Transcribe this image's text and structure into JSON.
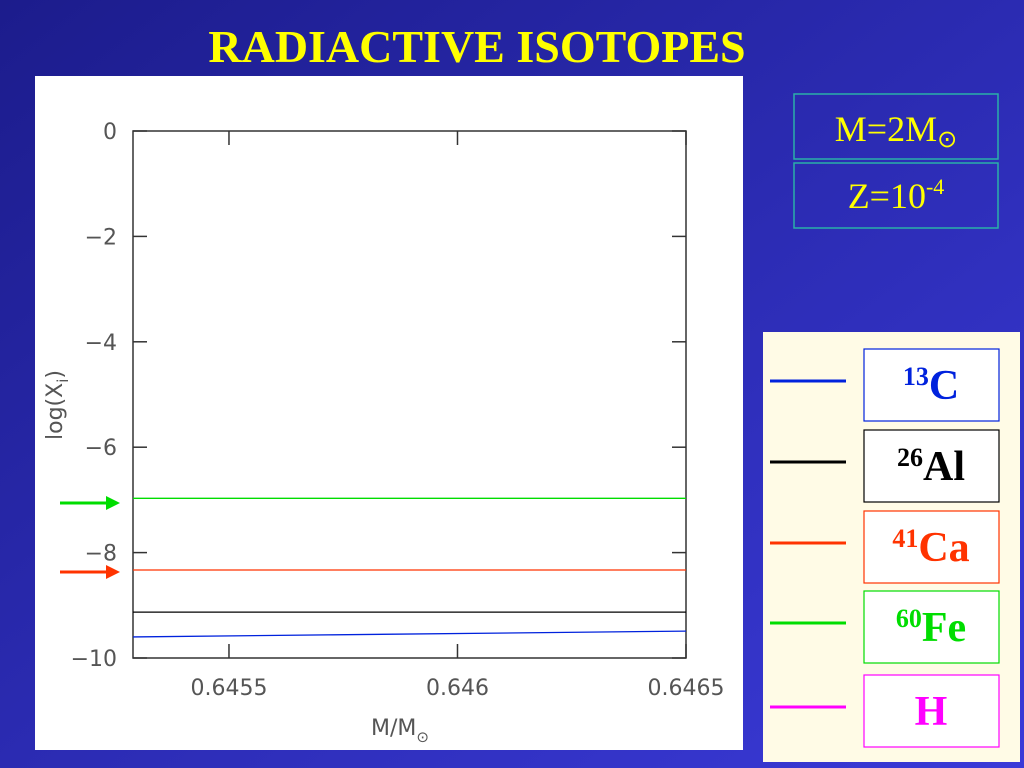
{
  "slide_title": "RADIACTIVE ISOTOPES",
  "info": {
    "mass": {
      "text": "M=2M",
      "sub": "⊙"
    },
    "metallicity": {
      "text": "Z=10",
      "sup": "-4"
    }
  },
  "chart_data": {
    "type": "line",
    "x_label": {
      "text": "M/M",
      "sub": "⊙"
    },
    "y_label": {
      "text": "log(X",
      "sub": "i",
      "end": ")"
    },
    "x": [
      0.64529,
      0.6465
    ],
    "xlim": [
      0.64529,
      0.6465
    ],
    "xticks": [
      0.6455,
      0.646,
      0.6465
    ],
    "ylim": [
      -10,
      0
    ],
    "yticks": [
      0,
      {
        "value": -2,
        "label": "−2"
      },
      {
        "value": -4,
        "label": "−4"
      },
      {
        "value": -6,
        "label": "−6"
      },
      {
        "value": -8,
        "label": "−8"
      },
      {
        "value": -10,
        "label": "−10"
      }
    ],
    "series": [
      {
        "mass": "13",
        "symbol": "C",
        "color": "#0022dd",
        "values": [
          -9.6,
          -9.49
        ]
      },
      {
        "mass": "26",
        "symbol": "Al",
        "color": "#000000",
        "values": [
          -9.13,
          -9.13
        ]
      },
      {
        "mass": "41",
        "symbol": "Ca",
        "color": "#ff3300",
        "values": [
          -8.33,
          -8.33
        ]
      },
      {
        "mass": "60",
        "symbol": "Fe",
        "color": "#00dd00",
        "values": [
          -6.97,
          -6.97
        ]
      },
      {
        "symbol": "H",
        "color": "#ff00ff",
        "values": [
          null,
          null
        ]
      }
    ]
  }
}
